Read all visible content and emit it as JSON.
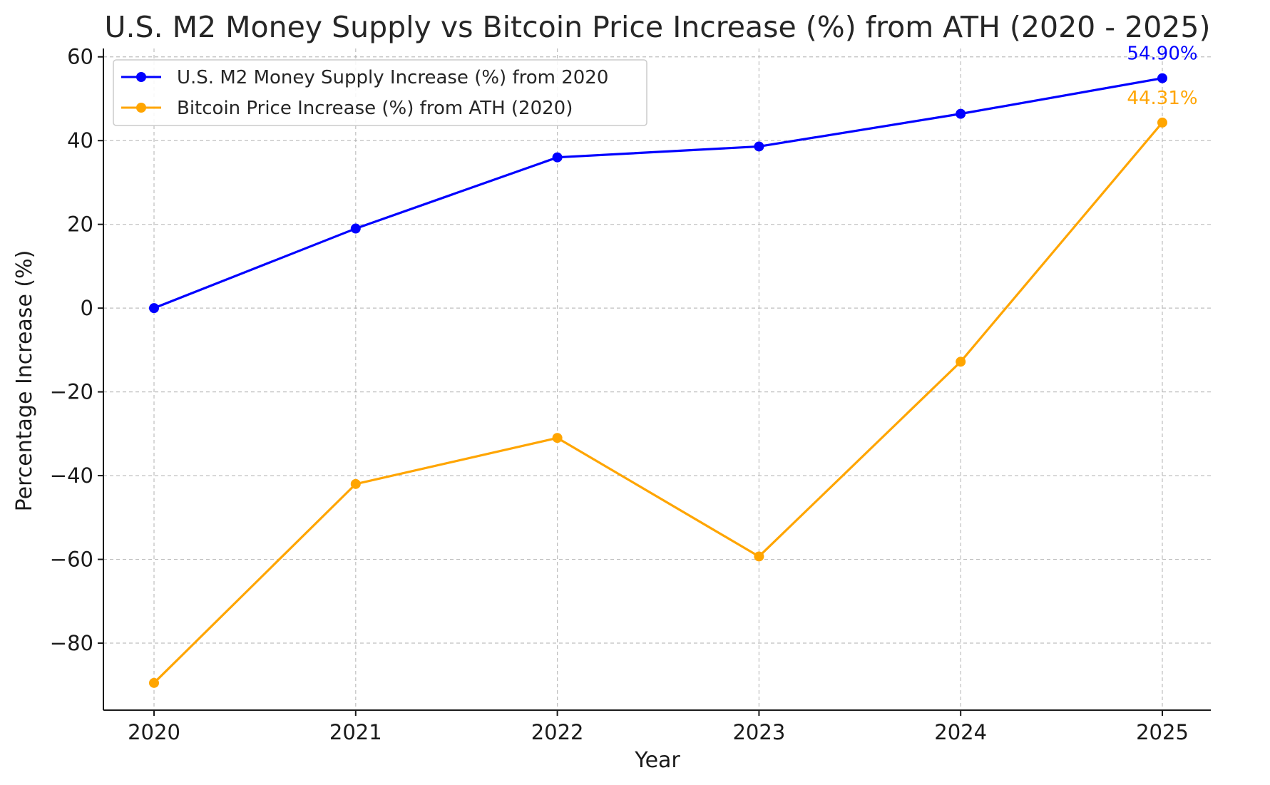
{
  "chart_data": {
    "type": "line",
    "title": "U.S. M2 Money Supply vs Bitcoin Price Increase (%) from ATH (2020 - 2025)",
    "xlabel": "Year",
    "ylabel": "Percentage Increase (%)",
    "x": [
      "2020",
      "2021",
      "2022",
      "2023",
      "2024",
      "2025"
    ],
    "ylim": [
      -96,
      62
    ],
    "yticks": [
      60,
      40,
      20,
      0,
      -20,
      -40,
      -60,
      -80
    ],
    "ytick_labels": [
      "60",
      "40",
      "20",
      "0",
      "−20",
      "−40",
      "−60",
      "−80"
    ],
    "grid": true,
    "legend_position": "top-left",
    "series": [
      {
        "name": "U.S. M2 Money Supply Increase (%) from 2020",
        "color": "#0000ff",
        "values": [
          0,
          19,
          36,
          38.6,
          46.4,
          54.9
        ],
        "end_label": "54.90%"
      },
      {
        "name": "Bitcoin Price Increase (%) from ATH (2020)",
        "color": "#ffa500",
        "values": [
          -89.5,
          -42,
          -31,
          -59.3,
          -12.8,
          44.31
        ],
        "end_label": "44.31%"
      }
    ]
  }
}
